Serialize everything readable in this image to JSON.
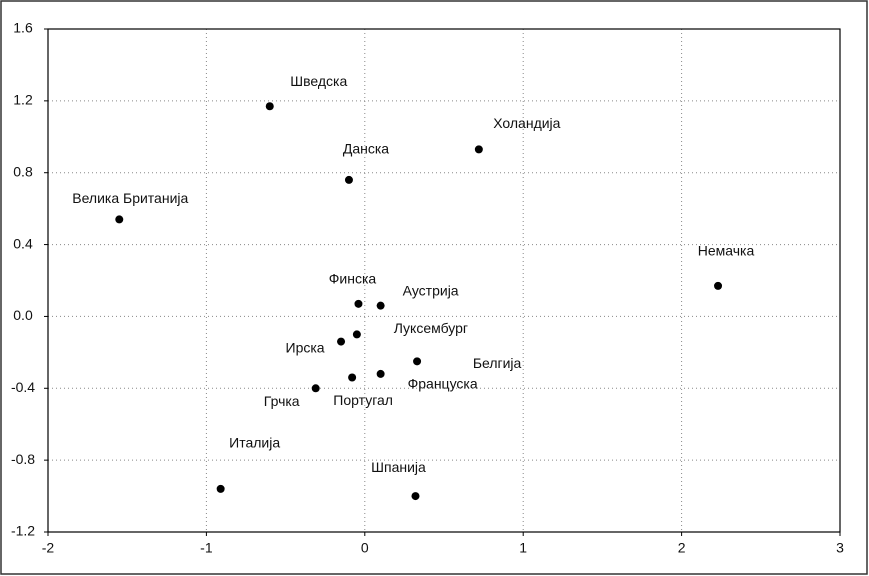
{
  "chart_data": {
    "type": "scatter",
    "point_labels": [
      "Шведска",
      "Холандија",
      "Данска",
      "Велика Британија",
      "Немачка",
      "Финска",
      "Аустрија",
      "Луксембург",
      "Ирска",
      "Белгија",
      "Француска",
      "Португал",
      "Грчка",
      "Италија",
      "Шпанија"
    ],
    "x": [
      -0.6,
      0.72,
      -0.1,
      -1.55,
      2.23,
      -0.04,
      0.1,
      -0.05,
      -0.15,
      0.33,
      0.1,
      -0.08,
      -0.31,
      -0.91,
      0.32
    ],
    "y": [
      1.17,
      0.93,
      0.76,
      0.54,
      0.17,
      0.07,
      0.06,
      -0.1,
      -0.14,
      -0.25,
      -0.32,
      -0.34,
      -0.4,
      -0.96,
      -1.0
    ],
    "color": "#000000",
    "xlim": [
      -2,
      3
    ],
    "xticks": [
      -2,
      -1,
      0,
      1,
      2,
      3
    ],
    "ylim": [
      -1.2,
      1.6
    ],
    "yticks": [
      {
        "value": -1.2,
        "label": "-1.2"
      },
      {
        "value": -0.8,
        "label": "-0.8"
      },
      {
        "value": -0.4,
        "label": "-0.4"
      },
      {
        "value": 0,
        "label": "0.0"
      },
      {
        "value": 0.4,
        "label": "0.4"
      },
      {
        "value": 0.8,
        "label": "0.8"
      },
      {
        "value": 1.2,
        "label": "1.2"
      },
      {
        "value": 1.6,
        "label": "1.6"
      }
    ],
    "grid": true
  }
}
